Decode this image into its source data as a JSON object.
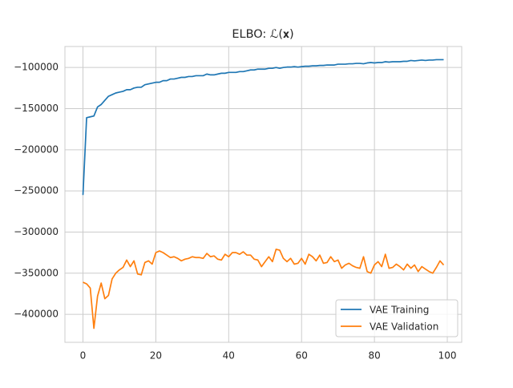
{
  "chart_data": {
    "type": "line",
    "title": "ELBO: ℒ(𝐱)",
    "x": [
      0,
      1,
      2,
      3,
      4,
      5,
      6,
      7,
      8,
      9,
      10,
      11,
      12,
      13,
      14,
      15,
      16,
      17,
      18,
      19,
      20,
      21,
      22,
      23,
      24,
      25,
      26,
      27,
      28,
      29,
      30,
      31,
      32,
      33,
      34,
      35,
      36,
      37,
      38,
      39,
      40,
      41,
      42,
      43,
      44,
      45,
      46,
      47,
      48,
      49,
      50,
      51,
      52,
      53,
      54,
      55,
      56,
      57,
      58,
      59,
      60,
      61,
      62,
      63,
      64,
      65,
      66,
      67,
      68,
      69,
      70,
      71,
      72,
      73,
      74,
      75,
      76,
      77,
      78,
      79,
      80,
      81,
      82,
      83,
      84,
      85,
      86,
      87,
      88,
      89,
      90,
      91,
      92,
      93,
      94,
      95,
      96,
      97,
      98,
      99
    ],
    "series": [
      {
        "name": "VAE Training",
        "color": "#1f77b4",
        "values": [
          -255000,
          -161000,
          -160000,
          -159000,
          -148000,
          -145000,
          -140000,
          -135000,
          -133000,
          -131000,
          -130000,
          -129000,
          -127000,
          -127000,
          -125000,
          -124000,
          -124000,
          -121000,
          -120000,
          -119000,
          -118000,
          -118000,
          -116000,
          -116000,
          -114000,
          -114000,
          -113000,
          -112000,
          -112000,
          -111000,
          -111000,
          -110000,
          -110000,
          -110000,
          -108000,
          -109000,
          -109000,
          -108000,
          -107000,
          -107000,
          -106000,
          -106000,
          -106000,
          -105000,
          -105000,
          -104000,
          -103000,
          -103000,
          -102000,
          -102000,
          -102000,
          -101000,
          -101000,
          -100000,
          -101000,
          -100000,
          -99500,
          -99500,
          -99000,
          -99500,
          -99000,
          -98500,
          -98500,
          -98000,
          -98000,
          -97500,
          -97500,
          -97000,
          -97000,
          -97000,
          -96000,
          -96000,
          -96000,
          -95500,
          -95500,
          -95000,
          -95000,
          -95500,
          -94500,
          -94000,
          -94500,
          -94000,
          -94000,
          -93000,
          -93500,
          -93000,
          -93000,
          -93000,
          -92500,
          -92500,
          -91500,
          -92000,
          -91500,
          -91000,
          -91500,
          -91000,
          -91000,
          -90500,
          -90500,
          -90500
        ]
      },
      {
        "name": "VAE Validation",
        "color": "#ff7f0e",
        "values": [
          -361000,
          -363000,
          -368000,
          -417000,
          -378000,
          -362000,
          -381000,
          -377000,
          -357000,
          -350000,
          -346000,
          -343000,
          -334000,
          -342000,
          -335000,
          -351000,
          -352000,
          -337000,
          -335000,
          -339000,
          -325000,
          -323000,
          -325000,
          -328000,
          -331000,
          -330000,
          -332000,
          -335000,
          -333000,
          -332000,
          -330000,
          -331000,
          -331000,
          -332000,
          -326000,
          -330000,
          -329000,
          -333000,
          -334000,
          -327000,
          -330000,
          -325000,
          -325000,
          -327000,
          -324000,
          -328000,
          -328000,
          -333000,
          -334000,
          -342000,
          -336000,
          -330000,
          -336000,
          -321000,
          -322000,
          -332000,
          -336000,
          -332000,
          -339000,
          -338000,
          -332000,
          -339000,
          -327000,
          -330000,
          -335000,
          -328000,
          -338000,
          -337000,
          -330000,
          -336000,
          -334000,
          -344000,
          -340000,
          -338000,
          -341000,
          -343000,
          -344000,
          -330000,
          -348000,
          -350000,
          -340000,
          -336000,
          -342000,
          -327000,
          -344000,
          -343000,
          -339000,
          -342000,
          -346000,
          -339000,
          -344000,
          -340000,
          -348000,
          -342000,
          -345000,
          -348000,
          -350000,
          -343000,
          -335000,
          -340000
        ]
      }
    ],
    "xlim": [
      -4.95,
      103.95
    ],
    "xticks": [
      0,
      20,
      40,
      60,
      80,
      100
    ],
    "ylim": [
      -434000,
      -74500
    ],
    "yticks": [
      {
        "value": -400000,
        "label": "−400000"
      },
      {
        "value": -350000,
        "label": "−350000"
      },
      {
        "value": -300000,
        "label": "−300000"
      },
      {
        "value": -250000,
        "label": "−250000"
      },
      {
        "value": -200000,
        "label": "−200000"
      },
      {
        "value": -150000,
        "label": "−150000"
      },
      {
        "value": -100000,
        "label": "−100000"
      }
    ],
    "grid": true,
    "legend": "lower-right"
  }
}
